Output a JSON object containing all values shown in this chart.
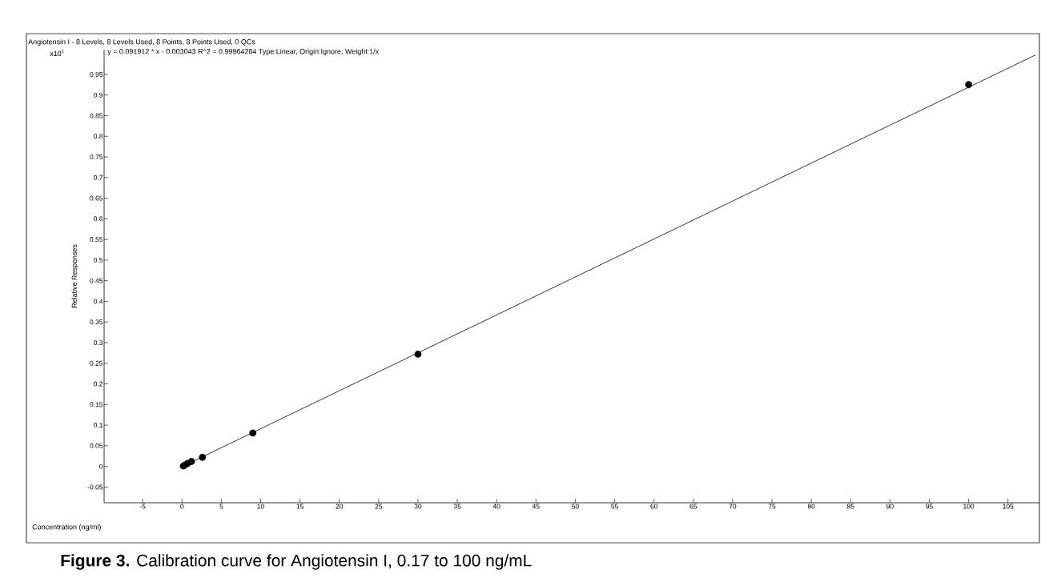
{
  "chart_data": {
    "type": "scatter",
    "title": "Angiotensin I - 8 Levels, 8 Levels Used, 8 Points, 8 Points Used, 0 QCs",
    "xlabel": "Concentration (ng/ml)",
    "ylabel": "Relative Responses",
    "annotations": [
      "x10$^{1}$",
      "y = 0.091912 * x  - 0.003043   R^2 = 0.99964284   Type:Linear, Origin:Ignore, Weight:1/x",
      "**Figure 3.** Calibration curve for Angiotensin I, 0.17 to 100 ng/mL"
    ],
    "x": [
      0.17,
      0.35,
      0.7,
      1.2,
      2.6,
      9,
      30,
      100
    ],
    "series": [
      {
        "marker": "circle",
        "color": "#000000",
        "values": [
          0.001,
          0.003,
          0.007,
          0.012,
          0.022,
          0.081,
          0.272,
          0.925
        ]
      },
      {
        "type": "line",
        "color": "#000000",
        "marker": "none",
        "x": [
          0.17,
          108.5
        ],
        "values": [
          0.001,
          0.997
        ]
      }
    ],
    "xlim": [
      -9.9,
      109
    ],
    "ylim": [
      -0.088,
      1.01
    ],
    "xticks": [
      -5,
      0,
      5,
      10,
      15,
      20,
      25,
      30,
      35,
      40,
      45,
      50,
      55,
      60,
      65,
      70,
      75,
      80,
      85,
      90,
      95,
      100,
      105
    ],
    "yticks": [
      -0.05,
      0,
      0.05,
      0.1,
      0.15,
      0.2,
      0.25,
      0.3,
      0.35,
      0.4,
      0.45,
      0.5,
      0.55,
      0.6,
      0.65,
      0.7,
      0.75,
      0.8,
      0.85,
      0.9,
      0.95
    ],
    "grid": false
  }
}
